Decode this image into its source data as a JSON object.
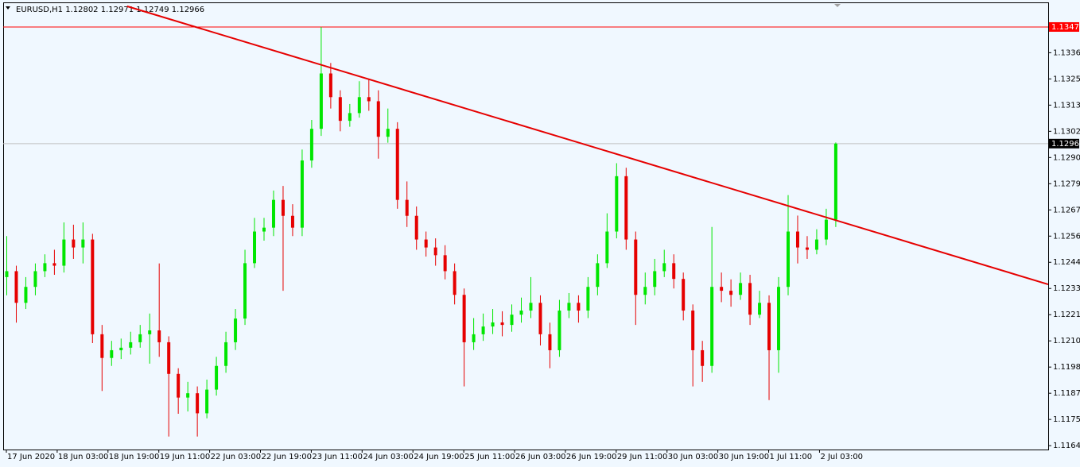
{
  "chart_data": {
    "type": "candlestick",
    "title": "EURUSD,H1  1.12802 1.12971 1.12749 1.12966",
    "up_color": "#00e600",
    "down_color": "#e60000",
    "grid": false,
    "xlim": [
      -1,
      328
    ],
    "ylim": [
      1.11623,
      1.13586
    ],
    "xticks": [
      {
        "value": 0,
        "label": "17 Jun 2020"
      },
      {
        "value": 16,
        "label": "18 Jun 03:00"
      },
      {
        "value": 32,
        "label": "18 Jun 19:00"
      },
      {
        "value": 48,
        "label": "19 Jun 11:00"
      },
      {
        "value": 64,
        "label": "22 Jun 03:00"
      },
      {
        "value": 80,
        "label": "22 Jun 19:00"
      },
      {
        "value": 96,
        "label": "23 Jun 11:00"
      },
      {
        "value": 112,
        "label": "24 Jun 03:00"
      },
      {
        "value": 128,
        "label": "24 Jun 19:00"
      },
      {
        "value": 144,
        "label": "25 Jun 11:00"
      },
      {
        "value": 160,
        "label": "26 Jun 03:00"
      },
      {
        "value": 176,
        "label": "26 Jun 19:00"
      },
      {
        "value": 192,
        "label": "29 Jun 11:00"
      },
      {
        "value": 208,
        "label": "30 Jun 03:00"
      },
      {
        "value": 224,
        "label": "30 Jun 19:00"
      },
      {
        "value": 240,
        "label": "1 Jul 11:00"
      },
      {
        "value": 256,
        "label": "2 Jul 03:00"
      }
    ],
    "yticks": [
      1.13365,
      {
        "value": 1.1325,
        "label": "1.13250"
      },
      1.13135,
      {
        "value": 1.1302,
        "label": "1.13020"
      },
      1.12905,
      {
        "value": 1.1279,
        "label": "1.12790"
      },
      1.12675,
      {
        "value": 1.1256,
        "label": "1.12560"
      },
      1.12445,
      {
        "value": 1.1233,
        "label": "1.12330"
      },
      1.12215,
      {
        "value": 1.121,
        "label": "1.12100"
      },
      1.11985,
      {
        "value": 1.1187,
        "label": "1.11870"
      },
      1.11755,
      {
        "value": 1.1164,
        "label": "1.11640"
      }
    ],
    "hlines": [
      {
        "value": 1.13478,
        "color": "#ff0000"
      },
      {
        "value": 1.12966,
        "color": "#c0c0c0"
      }
    ],
    "trendline": {
      "x": [
        38,
        328
      ],
      "y": [
        1.13569,
        1.12348
      ],
      "color": "#e60000"
    },
    "candles": [
      [
        0,
        1.1238,
        1.1256,
        1.123,
        1.12406
      ],
      [
        3,
        1.12406,
        1.1243,
        1.1218,
        1.12267
      ],
      [
        6,
        1.12267,
        1.1238,
        1.1224,
        1.12337
      ],
      [
        9,
        1.12337,
        1.1244,
        1.123,
        1.12406
      ],
      [
        12,
        1.12406,
        1.1248,
        1.1238,
        1.12441
      ],
      [
        15,
        1.12441,
        1.125,
        1.1239,
        1.1243
      ],
      [
        18,
        1.1243,
        1.1262,
        1.124,
        1.12545
      ],
      [
        21,
        1.12545,
        1.1261,
        1.1246,
        1.1251
      ],
      [
        24,
        1.1251,
        1.1262,
        1.1244,
        1.12545
      ],
      [
        27,
        1.12545,
        1.1257,
        1.1209,
        1.12129
      ],
      [
        30,
        1.12129,
        1.1217,
        1.1188,
        1.12025
      ],
      [
        33,
        1.12025,
        1.121,
        1.1199,
        1.12059
      ],
      [
        36,
        1.12059,
        1.1211,
        1.1202,
        1.1207
      ],
      [
        39,
        1.1207,
        1.1214,
        1.1204,
        1.12094
      ],
      [
        42,
        1.12094,
        1.1217,
        1.1207,
        1.12129
      ],
      [
        45,
        1.12129,
        1.1222,
        1.12,
        1.12146
      ],
      [
        48,
        1.12146,
        1.1244,
        1.1203,
        1.12094
      ],
      [
        51,
        1.12094,
        1.1212,
        1.1168,
        1.11955
      ],
      [
        54,
        1.11955,
        1.1198,
        1.1178,
        1.11851
      ],
      [
        57,
        1.11851,
        1.1192,
        1.1179,
        1.1187
      ],
      [
        60,
        1.1187,
        1.119,
        1.1168,
        1.11782
      ],
      [
        63,
        1.11782,
        1.1193,
        1.1176,
        1.11886
      ],
      [
        66,
        1.11886,
        1.1203,
        1.1186,
        1.1199
      ],
      [
        69,
        1.1199,
        1.1214,
        1.1196,
        1.12094
      ],
      [
        72,
        1.12094,
        1.1224,
        1.1206,
        1.12198
      ],
      [
        75,
        1.12198,
        1.125,
        1.1217,
        1.12441
      ],
      [
        78,
        1.12441,
        1.1264,
        1.1242,
        1.1258
      ],
      [
        81,
        1.1258,
        1.1264,
        1.1254,
        1.12597
      ],
      [
        84,
        1.12597,
        1.1276,
        1.1256,
        1.12719
      ],
      [
        87,
        1.12719,
        1.1278,
        1.1232,
        1.12649
      ],
      [
        90,
        1.12649,
        1.127,
        1.1256,
        1.12597
      ],
      [
        93,
        1.12597,
        1.1294,
        1.1256,
        1.12892
      ],
      [
        96,
        1.12892,
        1.1307,
        1.1286,
        1.13031
      ],
      [
        99,
        1.13031,
        1.13478,
        1.13,
        1.13274
      ],
      [
        102,
        1.13274,
        1.1332,
        1.1312,
        1.1317
      ],
      [
        105,
        1.1317,
        1.132,
        1.1302,
        1.13066
      ],
      [
        108,
        1.13066,
        1.1314,
        1.1304,
        1.131
      ],
      [
        111,
        1.131,
        1.1324,
        1.1308,
        1.1317
      ],
      [
        114,
        1.1317,
        1.1325,
        1.1311,
        1.13152
      ],
      [
        117,
        1.13152,
        1.132,
        1.129,
        1.12996
      ],
      [
        120,
        1.12996,
        1.1312,
        1.1297,
        1.13031
      ],
      [
        123,
        1.13031,
        1.1306,
        1.1268,
        1.12719
      ],
      [
        126,
        1.12719,
        1.128,
        1.126,
        1.12649
      ],
      [
        129,
        1.12649,
        1.1269,
        1.125,
        1.12545
      ],
      [
        132,
        1.12545,
        1.1258,
        1.1247,
        1.1251
      ],
      [
        135,
        1.1251,
        1.1255,
        1.1243,
        1.12476
      ],
      [
        138,
        1.12476,
        1.1252,
        1.1237,
        1.12406
      ],
      [
        141,
        1.12406,
        1.1244,
        1.1226,
        1.12302
      ],
      [
        144,
        1.12302,
        1.1233,
        1.119,
        1.12094
      ],
      [
        147,
        1.12094,
        1.122,
        1.1206,
        1.12129
      ],
      [
        150,
        1.12129,
        1.1222,
        1.121,
        1.12163
      ],
      [
        153,
        1.12163,
        1.1224,
        1.1213,
        1.12181
      ],
      [
        156,
        1.12181,
        1.1223,
        1.1212,
        1.1217
      ],
      [
        159,
        1.1217,
        1.1226,
        1.1214,
        1.12215
      ],
      [
        162,
        1.12215,
        1.1229,
        1.1218,
        1.12233
      ],
      [
        165,
        1.12233,
        1.1238,
        1.122,
        1.12267
      ],
      [
        168,
        1.12267,
        1.123,
        1.1208,
        1.12129
      ],
      [
        171,
        1.12129,
        1.1218,
        1.1198,
        1.12059
      ],
      [
        174,
        1.12059,
        1.1228,
        1.1203,
        1.12233
      ],
      [
        177,
        1.12233,
        1.1231,
        1.122,
        1.12267
      ],
      [
        180,
        1.12267,
        1.123,
        1.1218,
        1.12233
      ],
      [
        183,
        1.12233,
        1.1238,
        1.122,
        1.12337
      ],
      [
        186,
        1.12337,
        1.1248,
        1.123,
        1.12441
      ],
      [
        189,
        1.12441,
        1.1266,
        1.1242,
        1.1258
      ],
      [
        192,
        1.1258,
        1.1288,
        1.1255,
        1.12823
      ],
      [
        195,
        1.12823,
        1.1286,
        1.125,
        1.12545
      ],
      [
        198,
        1.12545,
        1.1258,
        1.1217,
        1.12302
      ],
      [
        201,
        1.12302,
        1.124,
        1.1226,
        1.12337
      ],
      [
        204,
        1.12337,
        1.1246,
        1.123,
        1.12406
      ],
      [
        207,
        1.12406,
        1.125,
        1.1238,
        1.12441
      ],
      [
        210,
        1.12441,
        1.1248,
        1.1233,
        1.12372
      ],
      [
        213,
        1.12372,
        1.124,
        1.1219,
        1.12233
      ],
      [
        216,
        1.12233,
        1.1226,
        1.119,
        1.12059
      ],
      [
        219,
        1.12059,
        1.121,
        1.1192,
        1.1199
      ],
      [
        222,
        1.1199,
        1.126,
        1.1196,
        1.12337
      ],
      [
        225,
        1.12337,
        1.124,
        1.1227,
        1.1232
      ],
      [
        228,
        1.1232,
        1.1237,
        1.1225,
        1.12302
      ],
      [
        231,
        1.12302,
        1.124,
        1.1228,
        1.12354
      ],
      [
        234,
        1.12354,
        1.1239,
        1.1217,
        1.12215
      ],
      [
        237,
        1.12215,
        1.1232,
        1.122,
        1.12267
      ],
      [
        240,
        1.12267,
        1.123,
        1.1184,
        1.12059
      ],
      [
        243,
        1.12059,
        1.1238,
        1.1196,
        1.12337
      ],
      [
        246,
        1.12337,
        1.1274,
        1.123,
        1.1258
      ],
      [
        249,
        1.1258,
        1.1265,
        1.1244,
        1.1251
      ],
      [
        252,
        1.1251,
        1.1256,
        1.1246,
        1.125
      ],
      [
        255,
        1.125,
        1.1259,
        1.1248,
        1.12545
      ],
      [
        258,
        1.12545,
        1.1268,
        1.1252,
        1.12632
      ],
      [
        261,
        1.12632,
        1.12971,
        1.126,
        1.12966
      ]
    ]
  }
}
